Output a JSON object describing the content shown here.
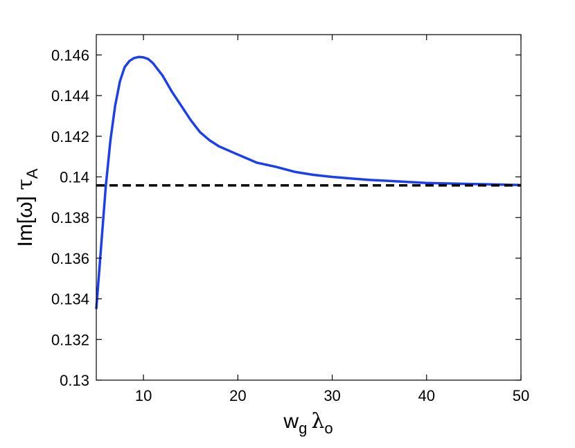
{
  "chart_data": {
    "type": "line",
    "title": "",
    "xlabel": {
      "main": "w",
      "sub1": "g",
      "greek": "λ",
      "sub2": "o"
    },
    "ylabel": {
      "main": "Im[ω] ",
      "greek": "τ",
      "sub": "A"
    },
    "xlim": [
      5,
      50
    ],
    "ylim": [
      0.13,
      0.147
    ],
    "grid": false,
    "legend": "none",
    "x_ticks": [
      10,
      20,
      30,
      40,
      50
    ],
    "x_tick_labels": [
      "10",
      "20",
      "30",
      "40",
      "50"
    ],
    "y_ticks": [
      0.13,
      0.132,
      0.134,
      0.136,
      0.138,
      0.14,
      0.142,
      0.144,
      0.146
    ],
    "y_tick_labels": [
      "0.13",
      "0.132",
      "0.134",
      "0.136",
      "0.138",
      "0.14",
      "0.142",
      "0.144",
      "0.146"
    ],
    "series": [
      {
        "color": "#1a3ef0",
        "style": "solid",
        "x": [
          5,
          5.5,
          6,
          6.5,
          7,
          7.5,
          8,
          8.5,
          9,
          9.5,
          10,
          10.5,
          11,
          11.5,
          12,
          13,
          14,
          15,
          16,
          17,
          18,
          20,
          22,
          24,
          26,
          28,
          30,
          32,
          34,
          36,
          38,
          40,
          42,
          44,
          46,
          48,
          50
        ],
        "y": [
          0.1335,
          0.1365,
          0.1395,
          0.1418,
          0.1435,
          0.1447,
          0.1454,
          0.1457,
          0.14585,
          0.1459,
          0.14588,
          0.1458,
          0.1456,
          0.1453,
          0.145,
          0.1442,
          0.1435,
          0.1428,
          0.1422,
          0.1418,
          0.1415,
          0.1411,
          0.1407,
          0.1405,
          0.14025,
          0.1401,
          0.14,
          0.13992,
          0.13985,
          0.1398,
          0.13975,
          0.1397,
          0.13968,
          0.13966,
          0.13964,
          0.13962,
          0.1396
        ]
      },
      {
        "color": "#000000",
        "style": "dashed",
        "x": [
          5,
          50
        ],
        "y": [
          0.13958,
          0.13958
        ]
      }
    ]
  }
}
